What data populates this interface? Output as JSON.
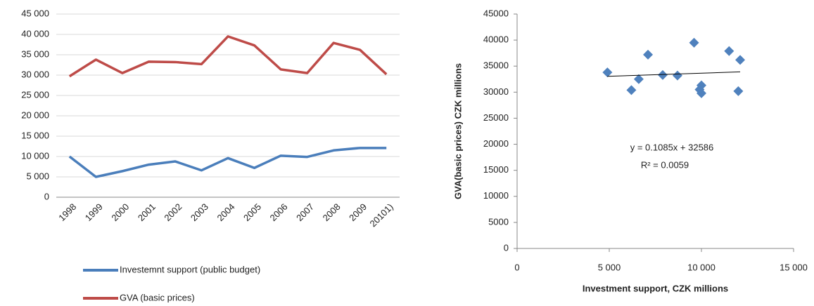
{
  "chart_data": [
    {
      "type": "line",
      "categories": [
        "1998",
        "1999",
        "2000",
        "2001",
        "2002",
        "2003",
        "2004",
        "2005",
        "2006",
        "2007",
        "2008",
        "2009",
        "20101)"
      ],
      "series": [
        {
          "name": "Investemnt support (public budget)",
          "color": "#4a7ebb",
          "values": [
            10000,
            5000,
            6400,
            8000,
            8800,
            6600,
            9600,
            7200,
            10200,
            9900,
            11500,
            12100,
            12100
          ]
        },
        {
          "name": "GVA (basic prices)",
          "color": "#be4b48",
          "values": [
            29700,
            33800,
            30500,
            33300,
            33200,
            32700,
            39500,
            37300,
            31400,
            30500,
            37900,
            36200,
            30200
          ]
        }
      ],
      "ylim": [
        0,
        45000
      ],
      "yticks": [
        0,
        {
          "value": 5000,
          "label": "5 000"
        },
        {
          "value": 10000,
          "label": "10 000"
        },
        {
          "value": 15000,
          "label": "15 000"
        },
        {
          "value": 20000,
          "label": "20 000"
        },
        {
          "value": 25000,
          "label": "25 000"
        },
        {
          "value": 30000,
          "label": "30 000"
        },
        {
          "value": 35000,
          "label": "35 000"
        },
        {
          "value": 40000,
          "label": "40 000"
        },
        {
          "value": 45000,
          "label": "45 000"
        }
      ],
      "grid": true,
      "legend": "bottom"
    },
    {
      "type": "scatter",
      "x_label": "Investment support, CZK millions",
      "y_label": "GVA(basic  prices) CZK  millions",
      "x": [
        10000,
        4900,
        6200,
        7900,
        8700,
        6600,
        9600,
        7100,
        10000,
        9900,
        11500,
        12100,
        12000
      ],
      "y": [
        29800,
        33800,
        30400,
        33300,
        33200,
        32500,
        39500,
        37200,
        31300,
        30500,
        37900,
        36200,
        30200
      ],
      "color": "#4f81bd",
      "xlim": [
        0,
        15000
      ],
      "xticks": [
        0,
        {
          "value": 5000,
          "label": "5 000"
        },
        {
          "value": 10000,
          "label": "10 000"
        },
        {
          "value": 15000,
          "label": "15 000"
        }
      ],
      "ylim": [
        0,
        45000
      ],
      "yticks": [
        0,
        5000,
        10000,
        15000,
        20000,
        25000,
        30000,
        35000,
        40000,
        45000
      ],
      "trendline_equation": "y = 0.1085x + 32586",
      "trendline_r2": "R² = 0.0059"
    }
  ]
}
